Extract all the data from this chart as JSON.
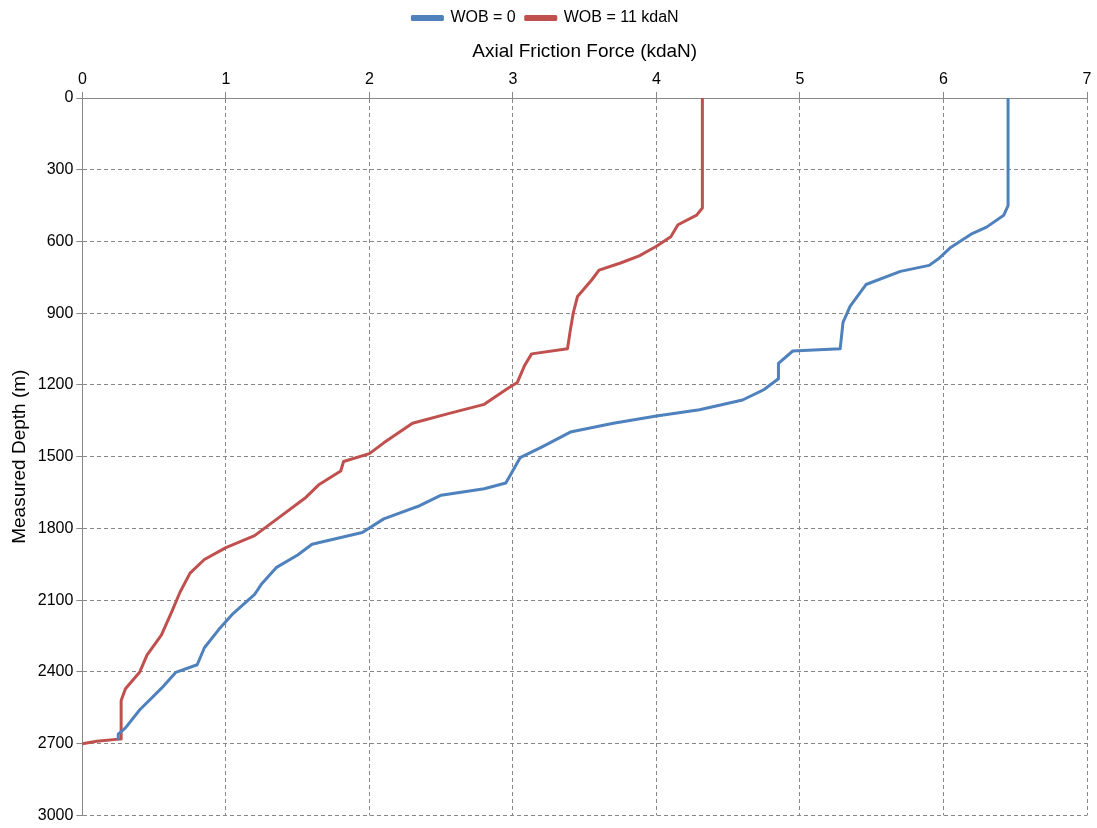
{
  "chart_data": {
    "type": "line",
    "xlabel": "Axial Friction Force (kdaN)",
    "ylabel": "Measured Depth (m)",
    "xlim": [
      0,
      7
    ],
    "xticks": [
      0,
      1,
      2,
      3,
      4,
      5,
      6,
      7
    ],
    "ylim": [
      3000,
      0
    ],
    "yticks": [
      0,
      300,
      600,
      900,
      1200,
      1500,
      1800,
      2100,
      2400,
      2700,
      3000
    ],
    "grid": true,
    "legend": "top",
    "line_style": "solid",
    "series": [
      {
        "name": "WOB = 0",
        "color": "#4f81bd",
        "x": [
          6.45,
          6.45,
          6.42,
          6.3,
          6.2,
          6.05,
          5.97,
          5.9,
          5.7,
          5.46,
          5.35,
          5.3,
          5.28,
          4.95,
          4.85,
          4.85,
          4.75,
          4.6,
          4.3,
          4.0,
          3.7,
          3.4,
          3.2,
          3.05,
          3.0,
          2.95,
          2.8,
          2.5,
          2.35,
          2.1,
          1.95,
          1.6,
          1.5,
          1.35,
          1.25,
          1.2,
          1.05,
          0.95,
          0.85,
          0.8,
          0.65,
          0.55,
          0.4,
          0.3,
          0.25,
          0.25
        ],
        "values": [
          0,
          450,
          490,
          540,
          567,
          625,
          670,
          700,
          725,
          780,
          870,
          938,
          1049,
          1058,
          1110,
          1174,
          1219,
          1263,
          1304,
          1330,
          1360,
          1397,
          1460,
          1504,
          1558,
          1610,
          1634,
          1661,
          1705,
          1760,
          1817,
          1866,
          1911,
          1964,
          2031,
          2076,
          2156,
          2223,
          2299,
          2370,
          2402,
          2469,
          2558,
          2634,
          2660,
          2680
        ]
      },
      {
        "name": "WOB = 11 kdaN",
        "color": "#c0504d",
        "x": [
          4.32,
          4.32,
          4.28,
          4.15,
          4.1,
          4.0,
          3.88,
          3.75,
          3.6,
          3.55,
          3.45,
          3.42,
          3.4,
          3.38,
          3.13,
          3.08,
          3.03,
          2.95,
          2.8,
          2.55,
          2.3,
          2.1,
          2.0,
          1.82,
          1.8,
          1.65,
          1.55,
          1.35,
          1.2,
          1.0,
          0.85,
          0.75,
          0.68,
          0.62,
          0.55,
          0.45,
          0.4,
          0.3,
          0.27,
          0.27,
          0.1,
          0
        ],
        "values": [
          0,
          460,
          490,
          530,
          580,
          620,
          660,
          690,
          720,
          760,
          830,
          900,
          970,
          1049,
          1070,
          1120,
          1190,
          1220,
          1281,
          1320,
          1360,
          1442,
          1487,
          1520,
          1560,
          1616,
          1674,
          1763,
          1830,
          1880,
          1930,
          1987,
          2067,
          2152,
          2246,
          2330,
          2400,
          2470,
          2520,
          2680,
          2690,
          2700
        ]
      }
    ]
  }
}
